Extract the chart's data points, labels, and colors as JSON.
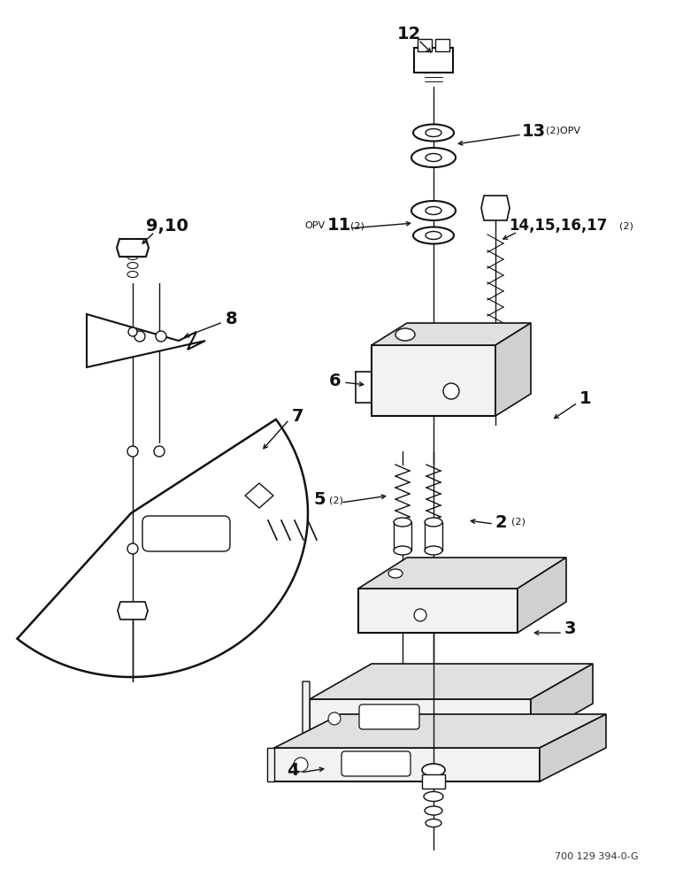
{
  "background_color": "#ffffff",
  "line_color": "#111111",
  "text_color": "#111111",
  "figure_width": 7.72,
  "figure_height": 10.0,
  "dpi": 100,
  "watermark": "700 129 394-0-G"
}
